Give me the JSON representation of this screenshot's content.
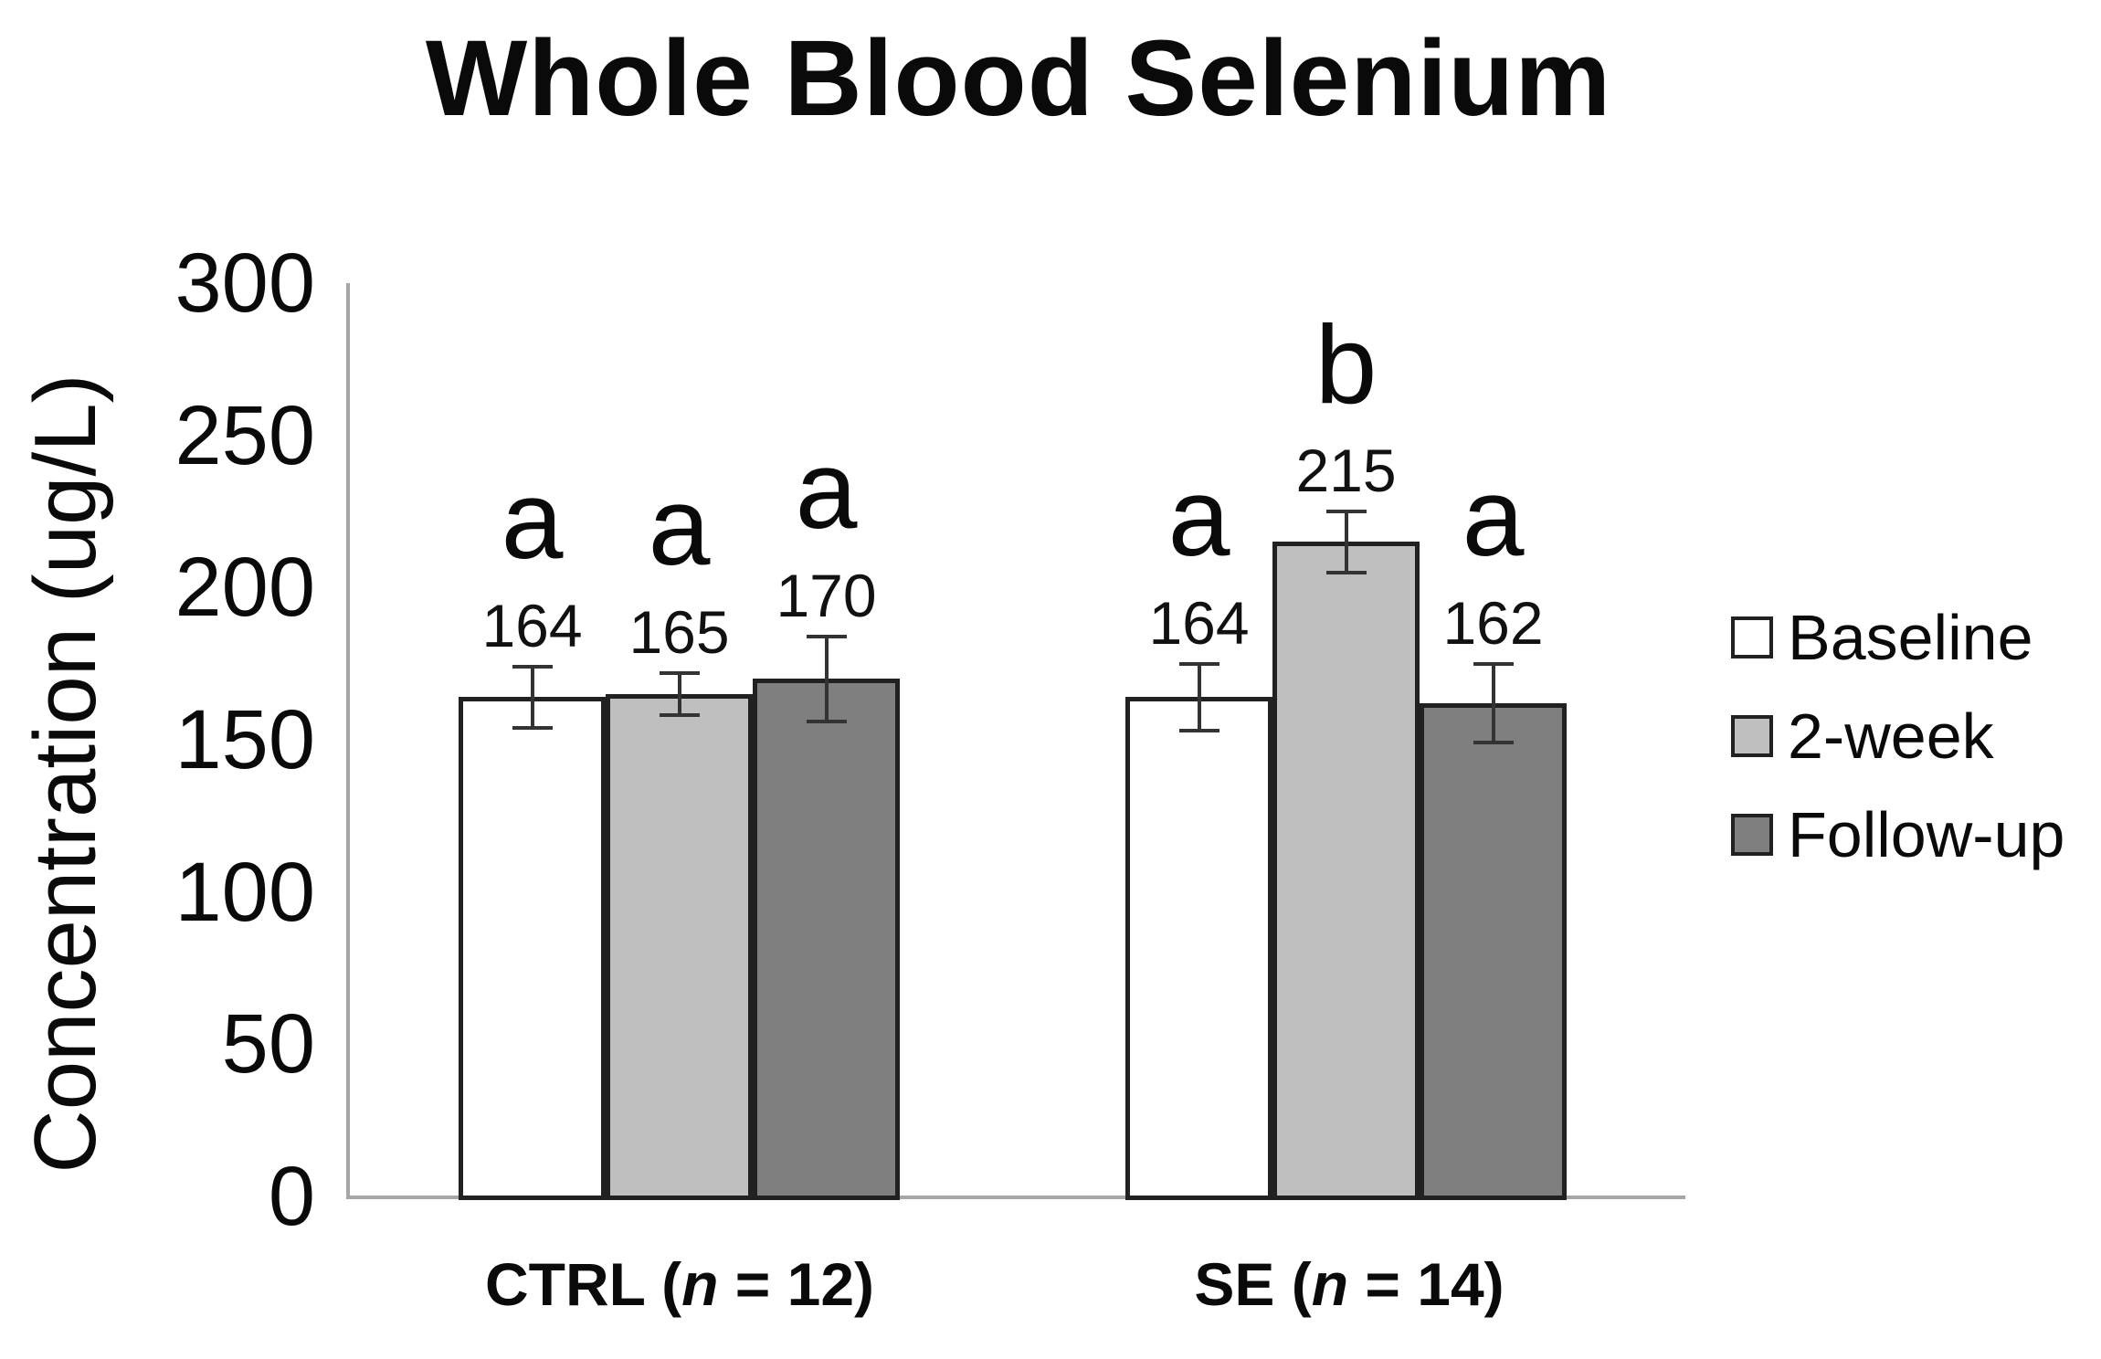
{
  "title": "Whole Blood Selenium",
  "y_axis": {
    "label": "Concentration (ug/L)",
    "ticks": [
      0,
      50,
      100,
      150,
      200,
      250,
      300
    ]
  },
  "x_axis": {
    "groups": [
      {
        "prefix": "CTRL (",
        "italic": "n",
        "suffix": " = 12)",
        "full": "CTRL (n = 12)"
      },
      {
        "prefix": "SE (",
        "italic": "n",
        "suffix": " = 14)",
        "full": "SE (n = 14)"
      }
    ]
  },
  "legend": [
    {
      "label": "Baseline",
      "color": "#ffffff"
    },
    {
      "label": "2-week",
      "color": "#bfbfbf"
    },
    {
      "label": "Follow-up",
      "color": "#7f7f7f"
    }
  ],
  "colors": {
    "baseline_fill": "#ffffff",
    "two_week_fill": "#bfbfbf",
    "follow_up_fill": "#7f7f7f",
    "bar_border": "#212121",
    "axis_line": "#a6a6a6",
    "error_bar": "#333333",
    "text": "#0a0a0a"
  },
  "chart_data": {
    "type": "bar",
    "title": "Whole Blood Selenium",
    "xlabel": "",
    "ylabel": "Concentration (ug/L)",
    "ylim": [
      0,
      300
    ],
    "yticks": [
      0,
      50,
      100,
      150,
      200,
      250,
      300
    ],
    "grid": false,
    "legend_position": "right",
    "categories": [
      "CTRL (n = 12)",
      "SE (n = 14)"
    ],
    "series": [
      {
        "name": "Baseline",
        "values": [
          164,
          164
        ],
        "errors": [
          10,
          11
        ],
        "sig_letters": [
          "a",
          "a"
        ],
        "color": "#ffffff"
      },
      {
        "name": "2-week",
        "values": [
          165,
          215
        ],
        "errors": [
          7,
          10
        ],
        "sig_letters": [
          "a",
          "b"
        ],
        "color": "#bfbfbf"
      },
      {
        "name": "Follow-up",
        "values": [
          170,
          162
        ],
        "errors": [
          14,
          13
        ],
        "sig_letters": [
          "a",
          "a"
        ],
        "color": "#7f7f7f"
      }
    ],
    "bar_value_labels": [
      [
        164,
        165,
        170
      ],
      [
        164,
        215,
        162
      ]
    ],
    "significance_letters": [
      [
        "a",
        "a",
        "a"
      ],
      [
        "a",
        "b",
        "a"
      ]
    ]
  }
}
